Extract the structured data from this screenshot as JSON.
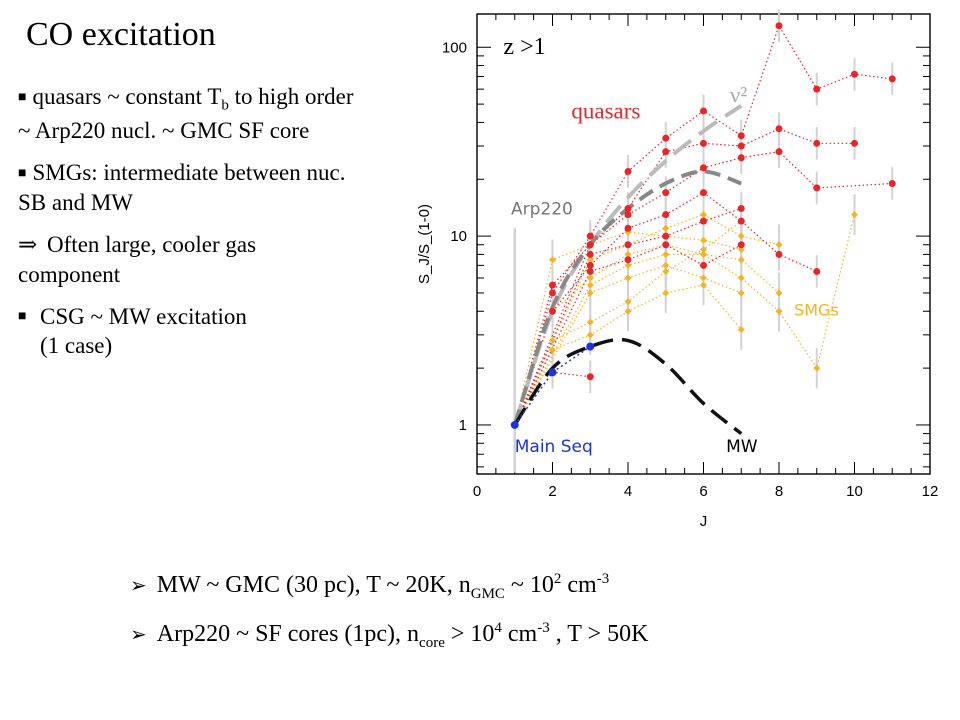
{
  "slide": {
    "title": "CO excitation",
    "bullets": {
      "b1": {
        "text_pre": "quasars ~ constant T",
        "sub": "b",
        "text_post": " to high order ~ Arp220 nucl. ~ GMC SF core"
      },
      "b2": {
        "text": "SMGs: intermediate between nuc. SB and MW"
      },
      "b3": {
        "arrow": "⇒",
        "text": " Often large, cooler gas component"
      },
      "b4": {
        "line1": "CSG ~ MW excitation",
        "line2": "(1 case)"
      }
    },
    "bottom": {
      "l1": {
        "pre": "MW ~ GMC (30 pc),  T ~ 20K, n",
        "sub": "GMC",
        "mid": " ~ 10",
        "sup1": "2",
        "mid2": " cm",
        "sup2": "-3"
      },
      "l2": {
        "pre": "Arp220 ~ SF cores (1pc),  n",
        "sub": "core",
        "mid": " > 10",
        "sup1": "4",
        "mid2": " cm",
        "sup2": "-3",
        "post": " , T > 50K"
      }
    }
  },
  "chart_data": {
    "type": "line",
    "xlabel": "J",
    "ylabel": "S_J/S_(1-0)",
    "xlim": [
      0,
      12
    ],
    "ylim": [
      0.55,
      150
    ],
    "yscale": "log",
    "x_ticks": [
      0,
      2,
      4,
      6,
      8,
      10,
      12
    ],
    "x_tick_labels": [
      "0",
      "2",
      "4",
      "6",
      "8",
      "10",
      "12"
    ],
    "y_ticks": [
      1,
      10,
      100
    ],
    "y_tick_labels": [
      "1",
      "10",
      "100"
    ],
    "annotations": {
      "redshift": "z >1",
      "quasars": "quasars",
      "nu2": "ν²",
      "arp220": "Arp220",
      "smgs": "SMGs",
      "mainseq": "Main Seq",
      "mw": "MW"
    },
    "colors": {
      "quasar": "#e8262a",
      "smg": "#f5b422",
      "mainseq": "#1a34e0",
      "mw": "#111111",
      "arp220": "#888888",
      "nu2": "#bbbbbb",
      "errbar": "#d3d3d3"
    },
    "curves": {
      "nu2": {
        "x": [
          1,
          2,
          3,
          4,
          5,
          6,
          7
        ],
        "y": [
          1,
          4,
          9,
          16,
          25,
          36,
          49
        ]
      },
      "arp220": {
        "x": [
          1,
          2,
          3,
          4,
          5,
          6,
          7
        ],
        "y": [
          1,
          4.2,
          9,
          14,
          19,
          22,
          19
        ]
      },
      "mw": {
        "x": [
          1,
          2,
          3,
          4,
          5,
          6,
          7
        ],
        "y": [
          1,
          2,
          2.6,
          2.8,
          2.1,
          1.3,
          0.9
        ]
      },
      "mainseq": {
        "x": [
          1,
          2,
          3
        ],
        "y": [
          1,
          1.9,
          2.6
        ]
      }
    },
    "quasar_series": [
      {
        "x": [
          1,
          2,
          3,
          4,
          5,
          6,
          7,
          8,
          9,
          10,
          11
        ],
        "y": [
          1,
          5,
          10,
          22,
          33,
          46,
          34,
          130,
          60,
          72,
          68
        ]
      },
      {
        "x": [
          1,
          2,
          3,
          4,
          5,
          6,
          7,
          8,
          9,
          10
        ],
        "y": [
          1,
          5.5,
          9,
          14,
          28,
          31,
          30,
          37,
          31,
          31
        ]
      },
      {
        "x": [
          1,
          3,
          4,
          5,
          6,
          7,
          8,
          9,
          11
        ],
        "y": [
          1,
          9,
          13,
          17,
          23,
          26,
          28,
          18,
          19
        ]
      },
      {
        "x": [
          1,
          2,
          3,
          4,
          5,
          6,
          7,
          8,
          9
        ],
        "y": [
          1,
          4,
          7,
          11,
          13,
          17,
          12,
          8,
          6.5
        ]
      },
      {
        "x": [
          1,
          3,
          4,
          5,
          6,
          7
        ],
        "y": [
          1,
          8,
          9,
          10,
          12,
          14
        ]
      },
      {
        "x": [
          1,
          3,
          4,
          5,
          6,
          7
        ],
        "y": [
          1,
          6.5,
          7.5,
          9,
          7,
          9
        ]
      },
      {
        "x": [
          2,
          3
        ],
        "y": [
          1.9,
          1.8
        ]
      }
    ],
    "smg_series": [
      {
        "x": [
          1,
          2,
          3,
          4,
          5,
          6,
          7
        ],
        "y": [
          1,
          7.5,
          9,
          10.5,
          10,
          9.5,
          8.5
        ]
      },
      {
        "x": [
          1,
          2,
          3,
          4,
          5,
          6,
          7,
          8
        ],
        "y": [
          1,
          4,
          6,
          8,
          9,
          8,
          7.5,
          5
        ]
      },
      {
        "x": [
          1,
          3,
          4,
          5,
          6,
          7,
          8,
          9,
          10
        ],
        "y": [
          1,
          5.5,
          7,
          8,
          8,
          6,
          4,
          2,
          13
        ]
      },
      {
        "x": [
          1,
          2,
          3,
          4,
          5,
          6,
          7
        ],
        "y": [
          1,
          2.5,
          3,
          4,
          5,
          5.5,
          3.2
        ]
      },
      {
        "x": [
          1,
          3,
          4,
          5,
          6,
          7
        ],
        "y": [
          1,
          5,
          6,
          7,
          6,
          5
        ]
      },
      {
        "x": [
          1,
          2,
          3,
          4,
          5,
          6,
          7
        ],
        "y": [
          1,
          2.8,
          3.5,
          4.5,
          6.5,
          8.5,
          12
        ]
      },
      {
        "x": [
          1,
          3,
          4,
          5,
          6,
          7,
          8
        ],
        "y": [
          1,
          7.5,
          9,
          11,
          13,
          10,
          9
        ]
      }
    ]
  }
}
